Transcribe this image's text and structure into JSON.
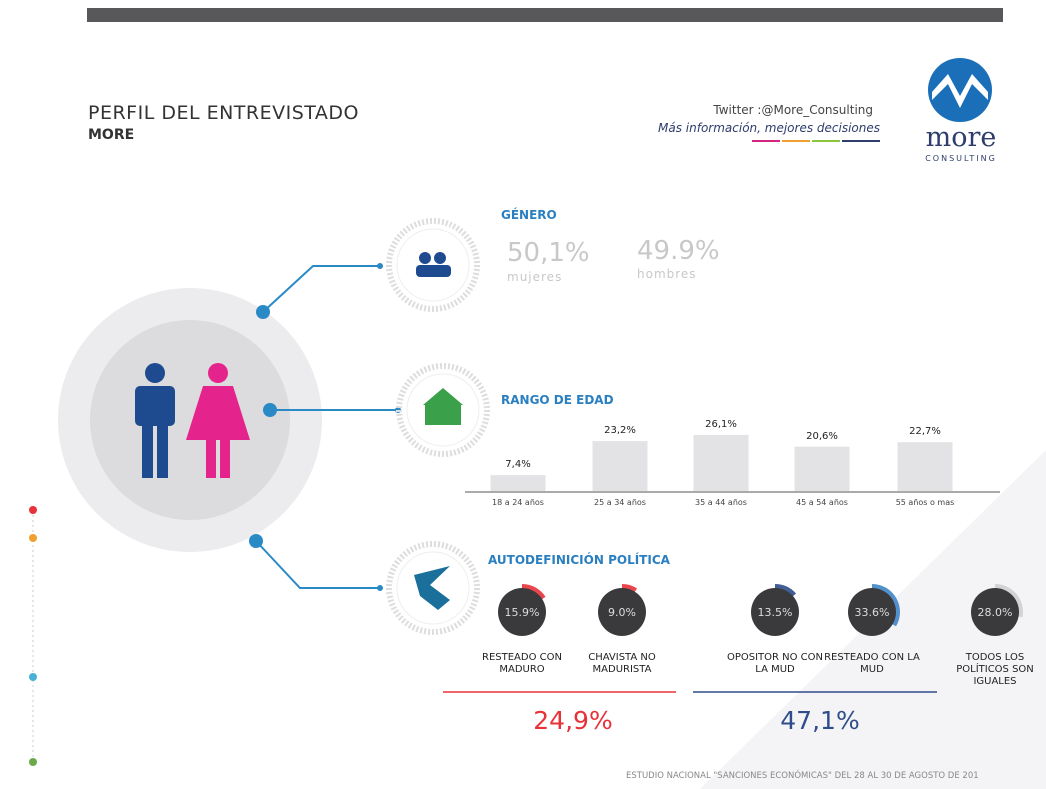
{
  "header": {
    "title": "PERFIL DEL ENTREVISTADO",
    "subtitle": "MORE",
    "twitter": "Twitter :@More_Consulting",
    "tagline": "Más información, mejores decisiones",
    "logo_word": "more",
    "logo_sub": "CONSULTING"
  },
  "gender": {
    "title": "GÉNERO",
    "items": [
      {
        "value": "50,1%",
        "label": "mujeres"
      },
      {
        "value": "49.9%",
        "label": "hombres"
      }
    ]
  },
  "age": {
    "title": "RANGO DE EDAD",
    "categories": [
      "18 a 24 años",
      "25 a 34 años",
      "35 a 44 años",
      "45 a 54 años",
      "55 años o mas"
    ],
    "values": [
      7.4,
      23.2,
      26.1,
      20.6,
      22.7
    ],
    "value_labels": [
      "7,4%",
      "23,2%",
      "26,1%",
      "20,6%",
      "22,7%"
    ],
    "color": "#e3e3e5"
  },
  "politics": {
    "title": "AUTODEFINICIÓN POLÍTICA",
    "categories": [
      "RESTEADO CON MADURO",
      "CHAVISTA NO MADURISTA",
      "OPOSITOR NO CON LA MUD",
      "RESTEADO CON LA MUD",
      "TODOS LOS POLÍTICOS SON IGUALES"
    ],
    "values": [
      15.9,
      9.0,
      13.5,
      33.6,
      28.0
    ],
    "value_labels": [
      "15.9%",
      "9.0%",
      "13.5%",
      "33.6%",
      "28.0%"
    ],
    "colors": [
      "#e8323a",
      "#e8323a",
      "#2e4d8a",
      "#3f86c6",
      "#cfcfcf"
    ],
    "totals": [
      {
        "value": "24,9%",
        "color": "#e8323a"
      },
      {
        "value": "47,1%",
        "color": "#2e4d8a"
      }
    ]
  },
  "footer": "ESTUDIO NACIONAL \"SANCIONES ECONÓMICAS\" DEL 28 AL 30  DE AGOSTO DE 201"
}
